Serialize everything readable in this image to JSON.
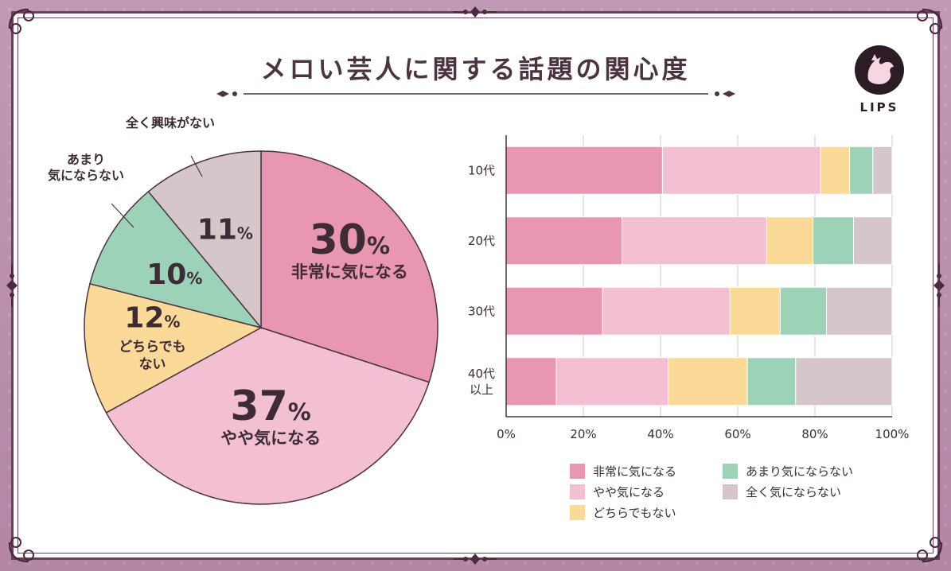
{
  "title": "メロい芸人に関する話題の関心度",
  "logo": {
    "text": "LIPS"
  },
  "chart_data": [
    {
      "type": "pie",
      "slices": [
        {
          "label": "非常に気になる",
          "value": 30,
          "value_text": "30",
          "unit": "%",
          "color": "#e896b2"
        },
        {
          "label": "やや気になる",
          "value": 37,
          "value_text": "37",
          "unit": "%",
          "color": "#f2bfd3"
        },
        {
          "label": "どちらでもない",
          "value": 12,
          "value_text": "12",
          "unit": "%",
          "color": "#fbd996"
        },
        {
          "label": "あまり気にならない",
          "value": 10,
          "value_text": "10",
          "unit": "%",
          "color": "#9bd2b8"
        },
        {
          "label": "全く興味がない",
          "value": 11,
          "value_text": "11",
          "unit": "%",
          "color": "#d5c7c9"
        }
      ]
    },
    {
      "type": "bar",
      "orientation": "horizontal",
      "stacked": true,
      "categories": [
        "10代",
        "20代",
        "30代",
        "40代\n以上"
      ],
      "xlim": [
        0,
        100
      ],
      "x_ticks": [
        "0%",
        "20%",
        "40%",
        "60%",
        "80%",
        "100%"
      ],
      "grid": true,
      "legend_position": "bottom",
      "series": [
        {
          "name": "非常に気になる",
          "color": "#e896b2",
          "values": [
            40.5,
            30,
            25,
            13
          ]
        },
        {
          "name": "やや気になる",
          "color": "#f2bfd3",
          "values": [
            41,
            37.5,
            33,
            29
          ]
        },
        {
          "name": "どちらでもない",
          "color": "#fbd996",
          "values": [
            7.5,
            12,
            13,
            20.5
          ]
        },
        {
          "name": "あまり気にならない",
          "color": "#9bd2b8",
          "values": [
            6,
            10.5,
            12,
            12.5
          ]
        },
        {
          "name": "全く気にならない",
          "color": "#d5c7c9",
          "values": [
            5,
            10,
            17,
            25
          ]
        }
      ]
    }
  ]
}
